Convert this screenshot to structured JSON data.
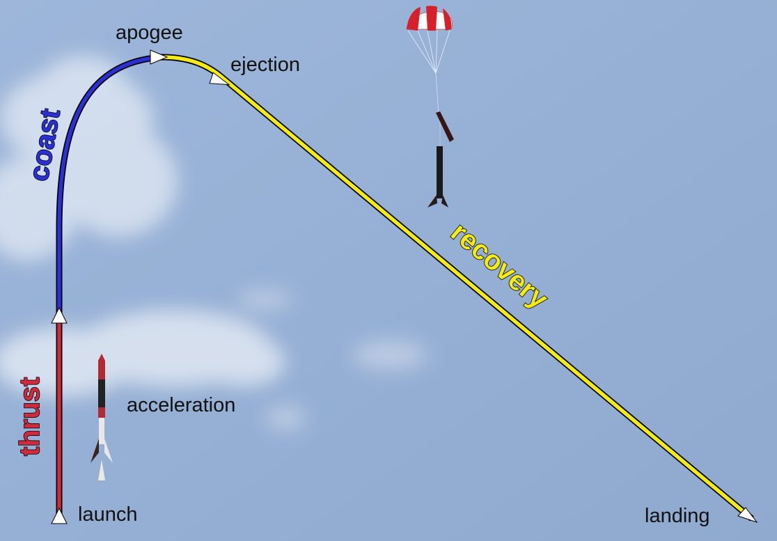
{
  "labels": {
    "launch": "launch",
    "acceleration": "acceleration",
    "apogee": "apogee",
    "ejection": "ejection",
    "landing": "landing"
  },
  "phases": {
    "thrust": "thrust",
    "coast": "coast",
    "recovery": "recovery"
  },
  "colors": {
    "thrust": "#d02a3c",
    "coast": "#2a2fd6",
    "recovery": "#f4ea14",
    "sky": "#96b0d4"
  },
  "icons": [
    "arrowhead-icon",
    "rocket-icon",
    "parachute-icon"
  ]
}
